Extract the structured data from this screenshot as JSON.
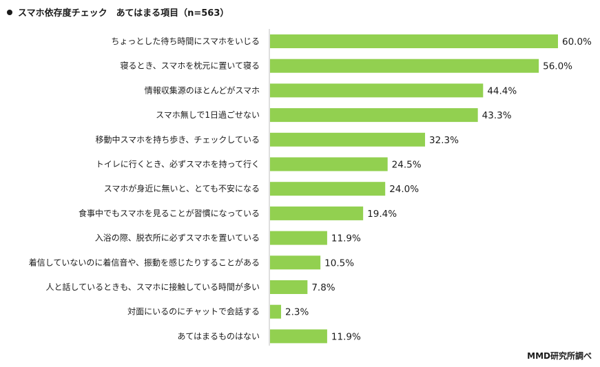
{
  "title": "スマホ依存度チェック　あてはまる項目（n=563）",
  "source": "MMD研究所調べ",
  "colors": {
    "bar": "#92d050",
    "axis": "#bfbfbf"
  },
  "chart_data": {
    "type": "bar",
    "orientation": "horizontal",
    "title": "スマホ依存度チェック　あてはまる項目（n=563）",
    "categories": [
      "ちょっとした待ち時間にスマホをいじる",
      "寝るとき、スマホを枕元に置いて寝る",
      "情報収集源のほとんどがスマホ",
      "スマホ無しで1日過ごせない",
      "移動中スマホを持ち歩き、チェックしている",
      "トイレに行くとき、必ずスマホを持って行く",
      "スマホが身近に無いと、とても不安になる",
      "食事中でもスマホを見ることが習慣になっている",
      "入浴の際、脱衣所に必ずスマホを置いている",
      "着信していないのに着信音や、振動を感じたりすることがある",
      "人と話しているときも、スマホに接触している時間が多い",
      "対面にいるのにチャットで会話する",
      "あてはまるものはない"
    ],
    "values": [
      60.0,
      56.0,
      44.4,
      43.3,
      32.3,
      24.5,
      24.0,
      19.4,
      11.9,
      10.5,
      7.8,
      2.3,
      11.9
    ],
    "value_labels": [
      "60.0%",
      "56.0%",
      "44.4%",
      "43.3%",
      "32.3%",
      "24.5%",
      "24.0%",
      "19.4%",
      "11.9%",
      "10.5%",
      "7.8%",
      "2.3%",
      "11.9%"
    ],
    "xlim": [
      0,
      60
    ],
    "grid": false,
    "legend": "none"
  }
}
